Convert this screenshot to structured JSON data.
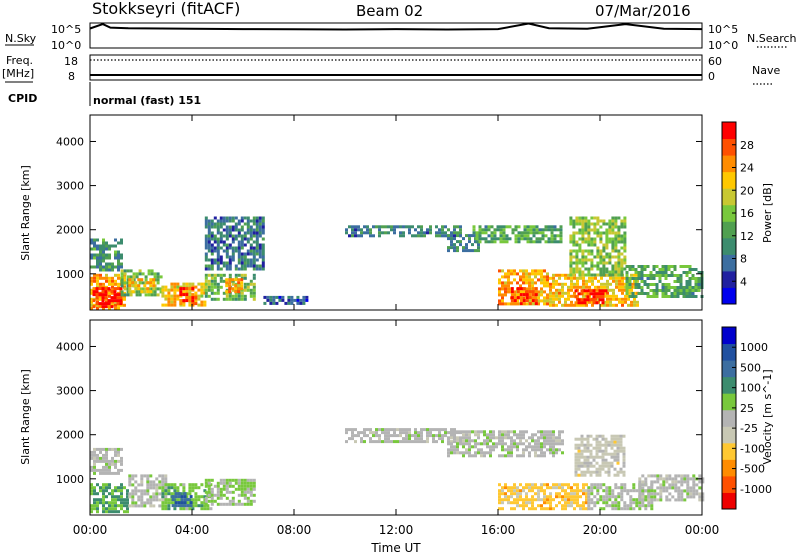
{
  "header": {
    "station": "Stokkseyri (fitACF)",
    "beam": "Beam 02",
    "date": "07/Mar/2016"
  },
  "top_strip": {
    "nsky_label": "N.Sky",
    "nsearch_label": "N.Search",
    "nsky_ticks": [
      "10^5",
      "10^0"
    ],
    "nsearch_ticks": [
      "10^5",
      "10^0"
    ],
    "freq_label": "Freq.",
    "freq_unit": "[MHz]",
    "freq_ticks": [
      "18",
      "8"
    ],
    "nave_label": "Nave",
    "nave_ticks": [
      "60",
      "0"
    ],
    "cpid_label": "CPID",
    "cpid_value": "normal (fast) 151"
  },
  "colors": {
    "power_scale": [
      "#0000ee",
      "#2020a0",
      "#3c6ea0",
      "#3c8c6e",
      "#50a050",
      "#78c83c",
      "#c8c832",
      "#ffc800",
      "#ff8c00",
      "#ff5000",
      "#ff0000"
    ],
    "velocity_scale": [
      "#ee0000",
      "#ff5000",
      "#ff8c00",
      "#ffc832",
      "#c8c8b4",
      "#b4b4b4",
      "#78c83c",
      "#3c8c6e",
      "#3c6ea0",
      "#2050a0",
      "#0000cc"
    ]
  },
  "chart_data": [
    {
      "type": "line",
      "title": "N.Sky / N.Search",
      "y_scale": "log",
      "ylim": [
        1,
        100000
      ],
      "x_hours": [
        0,
        0.5,
        0.8,
        1.5,
        2.8,
        4,
        6,
        8,
        10,
        12,
        14,
        16,
        17.2,
        18,
        19.5,
        21,
        22.5,
        24
      ],
      "values": [
        8000,
        60000,
        12000,
        9000,
        8000,
        7000,
        6000,
        5500,
        5000,
        6000,
        5000,
        6000,
        80000,
        9000,
        7000,
        60000,
        7000,
        6000
      ]
    },
    {
      "type": "line",
      "title": "Freq. / Nave",
      "y_freq_mhz": 10,
      "y_nave_dotted": 16,
      "xlim": [
        0,
        24
      ],
      "ylim": [
        8,
        18
      ]
    },
    {
      "type": "heatmap",
      "title": "Power",
      "xlabel": "",
      "ylabel": "Slant Range [km]",
      "colorbar_label": "Power [dB]",
      "colorbar_ticks": [
        "28",
        "24",
        "20",
        "16",
        "12",
        "8",
        "4"
      ],
      "colorbar_range": [
        0,
        30
      ],
      "xlim": [
        0,
        24
      ],
      "ylim": [
        180,
        4600
      ],
      "y_ticks": [
        "4000",
        "3000",
        "2000",
        "1000"
      ],
      "y_tick_values": [
        4000,
        3000,
        2000,
        1000
      ],
      "regions": [
        {
          "t": [
            0.0,
            1.4
          ],
          "r": [
            250,
            1000
          ],
          "power": 22
        },
        {
          "t": [
            0.1,
            1.2
          ],
          "r": [
            250,
            700
          ],
          "power": 28
        },
        {
          "t": [
            1.2,
            2.8
          ],
          "r": [
            500,
            1100
          ],
          "power": 14
        },
        {
          "t": [
            1.5,
            2.5
          ],
          "r": [
            600,
            900
          ],
          "power": 20
        },
        {
          "t": [
            2.8,
            4.5
          ],
          "r": [
            300,
            800
          ],
          "power": 20
        },
        {
          "t": [
            3.5,
            4.2
          ],
          "r": [
            350,
            700
          ],
          "power": 27
        },
        {
          "t": [
            4.5,
            6.5
          ],
          "r": [
            400,
            1000
          ],
          "power": 14
        },
        {
          "t": [
            5.3,
            6.0
          ],
          "r": [
            600,
            900
          ],
          "power": 22
        },
        {
          "t": [
            0.0,
            1.2
          ],
          "r": [
            1100,
            1800
          ],
          "power": 10
        },
        {
          "t": [
            4.5,
            6.8
          ],
          "r": [
            1100,
            2300
          ],
          "power": 8
        },
        {
          "t": [
            6.8,
            8.5
          ],
          "r": [
            300,
            500
          ],
          "power": 6
        },
        {
          "t": [
            10.0,
            14.5
          ],
          "r": [
            1850,
            2100
          ],
          "power": 9
        },
        {
          "t": [
            14.0,
            15.2
          ],
          "r": [
            1500,
            1900
          ],
          "power": 10
        },
        {
          "t": [
            15.0,
            18.5
          ],
          "r": [
            1700,
            2100
          ],
          "power": 12
        },
        {
          "t": [
            16.0,
            18.0
          ],
          "r": [
            300,
            1100
          ],
          "power": 22
        },
        {
          "t": [
            16.5,
            17.5
          ],
          "r": [
            350,
            700
          ],
          "power": 27
        },
        {
          "t": [
            18.0,
            21.5
          ],
          "r": [
            300,
            1000
          ],
          "power": 21
        },
        {
          "t": [
            19.0,
            20.2
          ],
          "r": [
            350,
            650
          ],
          "power": 28
        },
        {
          "t": [
            21.0,
            24.0
          ],
          "r": [
            500,
            1200
          ],
          "power": 12
        },
        {
          "t": [
            18.8,
            21.0
          ],
          "r": [
            1000,
            2300
          ],
          "power": 15
        }
      ]
    },
    {
      "type": "heatmap",
      "title": "Velocity",
      "xlabel": "Time UT",
      "ylabel": "Slant Range [km]",
      "colorbar_label": "Velocity [m s^-1]",
      "colorbar_ticks": [
        "1000",
        "500",
        "100",
        "25",
        "-25",
        "-100",
        "-500",
        "-1000"
      ],
      "colorbar_range": [
        -1000,
        1000
      ],
      "xlim": [
        0,
        24
      ],
      "ylim": [
        180,
        4600
      ],
      "x_ticks": [
        "00:00",
        "04:00",
        "08:00",
        "12:00",
        "16:00",
        "20:00",
        "00:00"
      ],
      "x_tick_values": [
        0,
        4,
        8,
        12,
        16,
        20,
        24
      ],
      "y_ticks": [
        "4000",
        "3000",
        "2000",
        "1000"
      ],
      "y_tick_values": [
        4000,
        3000,
        2000,
        1000
      ],
      "regions": [
        {
          "t": [
            0.0,
            1.5
          ],
          "r": [
            250,
            900
          ],
          "velocity": 300
        },
        {
          "t": [
            1.5,
            3.0
          ],
          "r": [
            400,
            1100
          ],
          "velocity": 0
        },
        {
          "t": [
            2.8,
            4.8
          ],
          "r": [
            300,
            900
          ],
          "velocity": 200
        },
        {
          "t": [
            3.2,
            4.0
          ],
          "r": [
            400,
            700
          ],
          "velocity": 600
        },
        {
          "t": [
            4.5,
            6.5
          ],
          "r": [
            400,
            1000
          ],
          "velocity": 120
        },
        {
          "t": [
            0.0,
            1.2
          ],
          "r": [
            1100,
            1700
          ],
          "velocity": 0
        },
        {
          "t": [
            10.0,
            14.5
          ],
          "r": [
            1850,
            2150
          ],
          "velocity": 0
        },
        {
          "t": [
            14.0,
            18.5
          ],
          "r": [
            1550,
            2100
          ],
          "velocity": 10
        },
        {
          "t": [
            16.0,
            19.5
          ],
          "r": [
            300,
            900
          ],
          "velocity": -350
        },
        {
          "t": [
            19.5,
            22.0
          ],
          "r": [
            350,
            900
          ],
          "velocity": 60
        },
        {
          "t": [
            21.5,
            24.0
          ],
          "r": [
            500,
            1100
          ],
          "velocity": 0
        },
        {
          "t": [
            19.0,
            21.0
          ],
          "r": [
            1100,
            2000
          ],
          "velocity": -150
        }
      ]
    }
  ]
}
